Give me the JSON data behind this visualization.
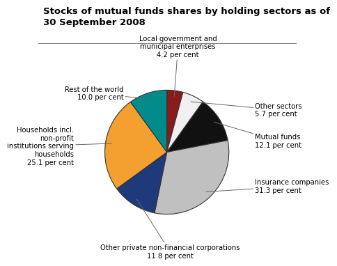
{
  "title": "Stocks of mutual funds shares by holding sectors as of\n30 September 2008",
  "slices": [
    {
      "label": "Local government and\nmunicipal enterprises\n4.2 per cent",
      "value": 4.2,
      "color": "#8b1a1a"
    },
    {
      "label": "Other sectors\n5.7 per cent",
      "value": 5.7,
      "color": "#f0f0f0"
    },
    {
      "label": "Mutual funds\n12.1 per cent",
      "value": 12.1,
      "color": "#111111"
    },
    {
      "label": "Insurance companies\n31.3 per cent",
      "value": 31.3,
      "color": "#c0c0c0"
    },
    {
      "label": "Other private non-financial corporations\n11.8 per cent",
      "value": 11.8,
      "color": "#1e3a7a"
    },
    {
      "label": "Households incl.\nnon-profit\ninstitutions serving\nhouseholds\n25.1 per cent",
      "value": 25.1,
      "color": "#f4a030"
    },
    {
      "label": "Rest of the world\n10.0 per cent",
      "value": 10.0,
      "color": "#008b8b"
    }
  ],
  "startangle": 90,
  "title_fontsize": 9.5,
  "label_fontsize": 7.2,
  "background_color": "#ffffff"
}
